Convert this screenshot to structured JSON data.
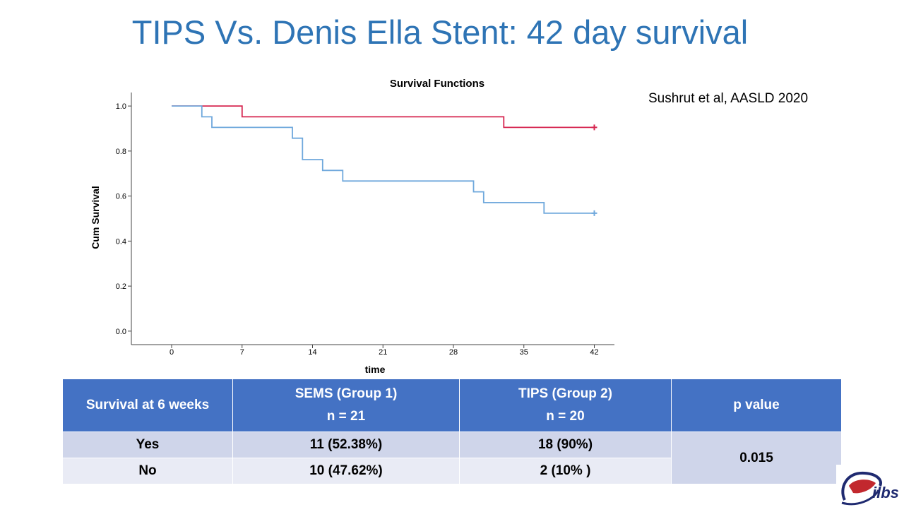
{
  "slide": {
    "title": "TIPS Vs. Denis Ella Stent: 42 day survival",
    "citation": "Sushrut et al, AASLD 2020"
  },
  "chart_data": {
    "type": "line",
    "step": true,
    "title": "Survival Functions",
    "xlabel": "time",
    "ylabel": "Cum Survival",
    "xlim": [
      -4,
      44
    ],
    "ylim": [
      -0.06,
      1.06
    ],
    "xticks": [
      0,
      7,
      14,
      21,
      28,
      35,
      42
    ],
    "yticks": [
      0.0,
      0.2,
      0.4,
      0.6,
      0.8,
      1.0
    ],
    "ytick_labels": [
      "0.0",
      "0.2",
      "0.4",
      "0.6",
      "0.8",
      "1.0"
    ],
    "grid": false,
    "series": [
      {
        "color": "#d6254f",
        "x": [
          0,
          7,
          7,
          33,
          33,
          42
        ],
        "y": [
          1.0,
          1.0,
          0.952,
          0.952,
          0.905,
          0.905
        ],
        "censored": [
          [
            42,
            0.905
          ]
        ]
      },
      {
        "color": "#6fa8dc",
        "x": [
          0,
          3,
          3,
          4,
          4,
          12,
          12,
          13,
          13,
          15,
          15,
          17,
          17,
          30,
          30,
          31,
          31,
          37,
          37,
          42
        ],
        "y": [
          1.0,
          1.0,
          0.952,
          0.952,
          0.905,
          0.905,
          0.857,
          0.857,
          0.762,
          0.762,
          0.714,
          0.714,
          0.667,
          0.667,
          0.619,
          0.619,
          0.571,
          0.571,
          0.524,
          0.524
        ],
        "censored": [
          [
            42,
            0.524
          ]
        ]
      }
    ]
  },
  "table": {
    "headers": [
      {
        "line1": "Survival at 6 weeks",
        "line2": ""
      },
      {
        "line1": "SEMS (Group 1)",
        "line2": "n = 21"
      },
      {
        "line1": "TIPS (Group 2)",
        "line2": "n = 20"
      },
      {
        "line1": "p value",
        "line2": ""
      }
    ],
    "rows": [
      {
        "label": "Yes",
        "sems": "11 (52.38%)",
        "tips": "18 (90%)"
      },
      {
        "label": "No",
        "sems": "10 (47.62%)",
        "tips": "2 (10% )"
      }
    ],
    "p_value": "0.015"
  },
  "logo": {
    "text": "ilbs",
    "icon": "liver-logo-icon"
  }
}
